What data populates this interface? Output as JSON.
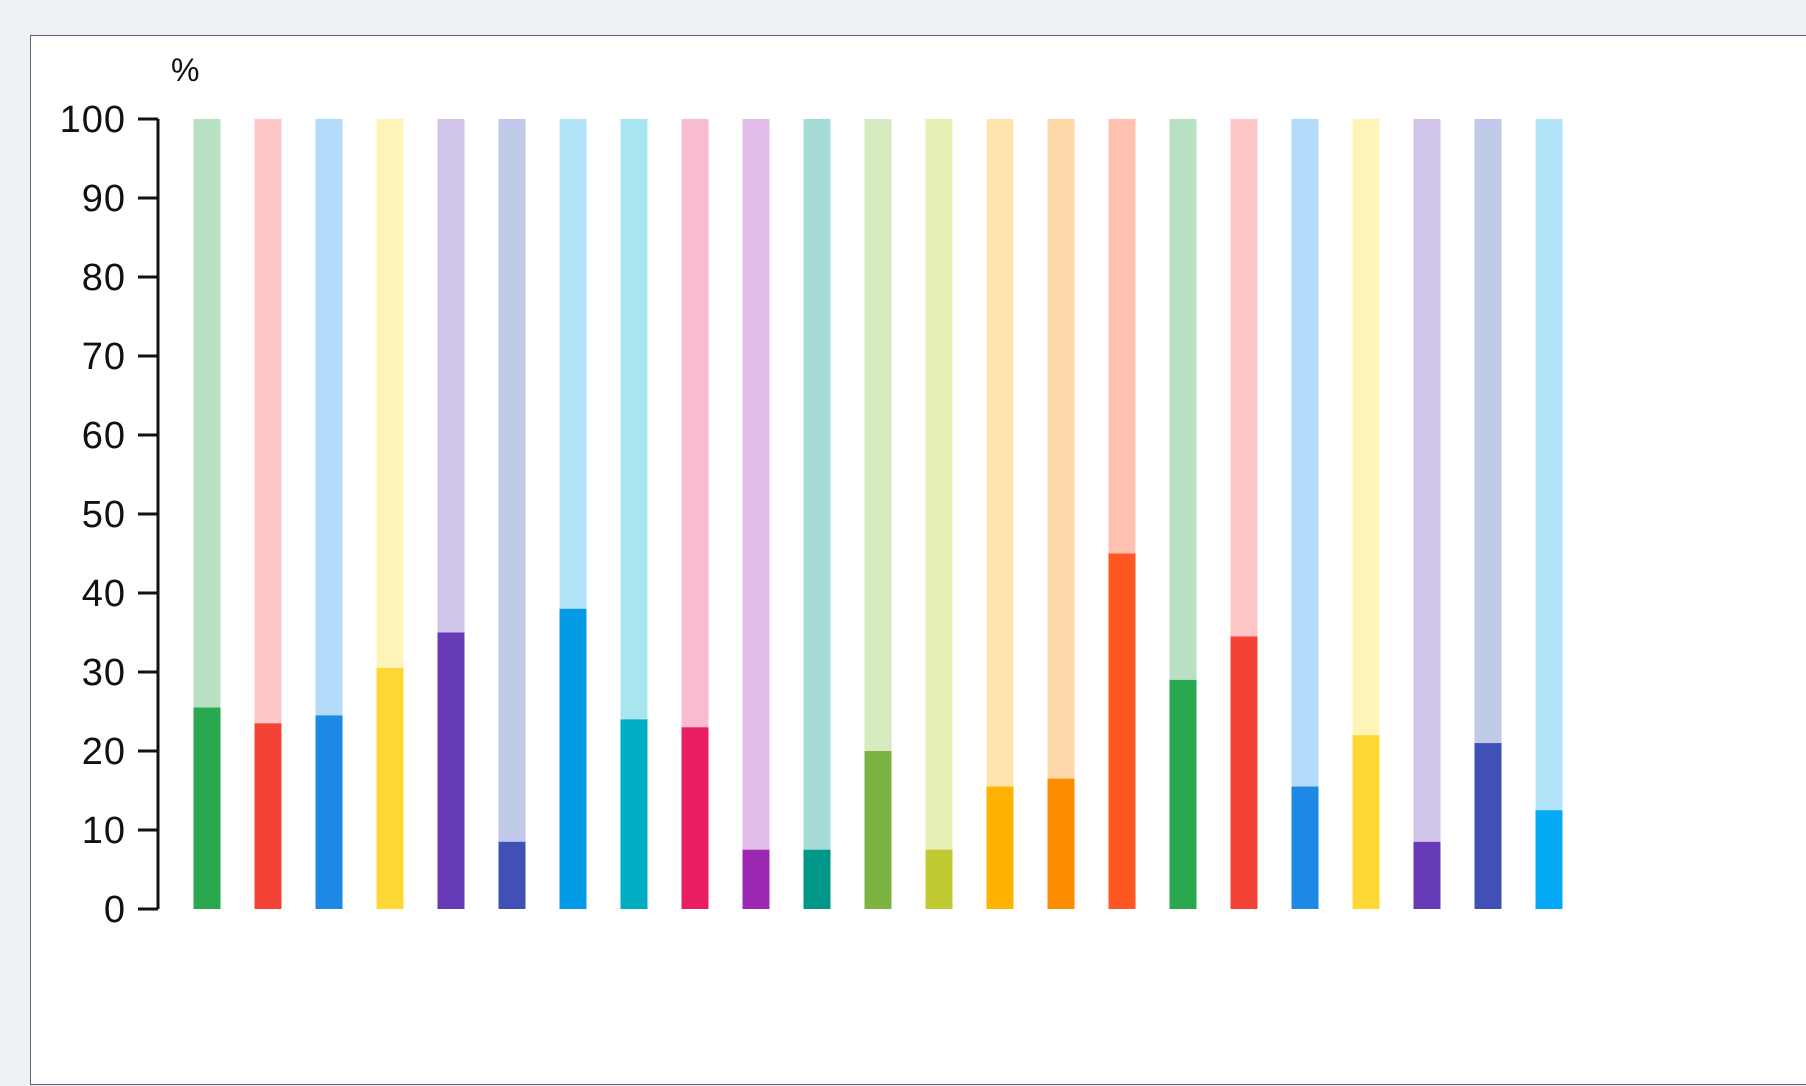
{
  "chart_data": {
    "type": "bar",
    "stacked_to": 100,
    "y_unit_label": "%",
    "ylim": [
      0,
      100
    ],
    "yticks": [
      0,
      10,
      20,
      30,
      40,
      50,
      60,
      70,
      80,
      90,
      100
    ],
    "grid": false,
    "legend": "none",
    "series": [
      {
        "values": [
          25.5,
          23.5,
          24.5,
          30.5,
          35,
          8.5,
          38,
          24,
          23,
          7.5,
          7.5,
          20,
          7.5,
          15.5,
          16.5,
          45,
          29,
          34.5,
          15.5,
          22,
          8.5,
          21,
          12.5
        ]
      }
    ],
    "colors": [
      "#2aa84f",
      "#f44336",
      "#1e88e5",
      "#fdd835",
      "#673ab7",
      "#3f51b5",
      "#039be5",
      "#00acc1",
      "#e91e63",
      "#9c27b0",
      "#009688",
      "#7cb342",
      "#c0ca33",
      "#ffb300",
      "#fb8c00",
      "#ff5722",
      "#2aa84f",
      "#f44336",
      "#1e88e5",
      "#fdd835",
      "#673ab7",
      "#3f51b5",
      "#03a9f4"
    ],
    "light_colors": [
      "#b7e1c2",
      "#ffc7c7",
      "#b3dbf9",
      "#fff4b8",
      "#d1c4e9",
      "#c0c9e8",
      "#b3e3f9",
      "#a8e6ef",
      "#f8bbd0",
      "#e1bee7",
      "#a6dcd8",
      "#d6ebc0",
      "#e9f0b6",
      "#ffe4ad",
      "#ffd8aa",
      "#ffc2b1",
      "#b7e1c2",
      "#ffc7c7",
      "#b3dbf9",
      "#fff4b8",
      "#d1c4e9",
      "#c0c9e8",
      "#b3e3f9"
    ]
  }
}
